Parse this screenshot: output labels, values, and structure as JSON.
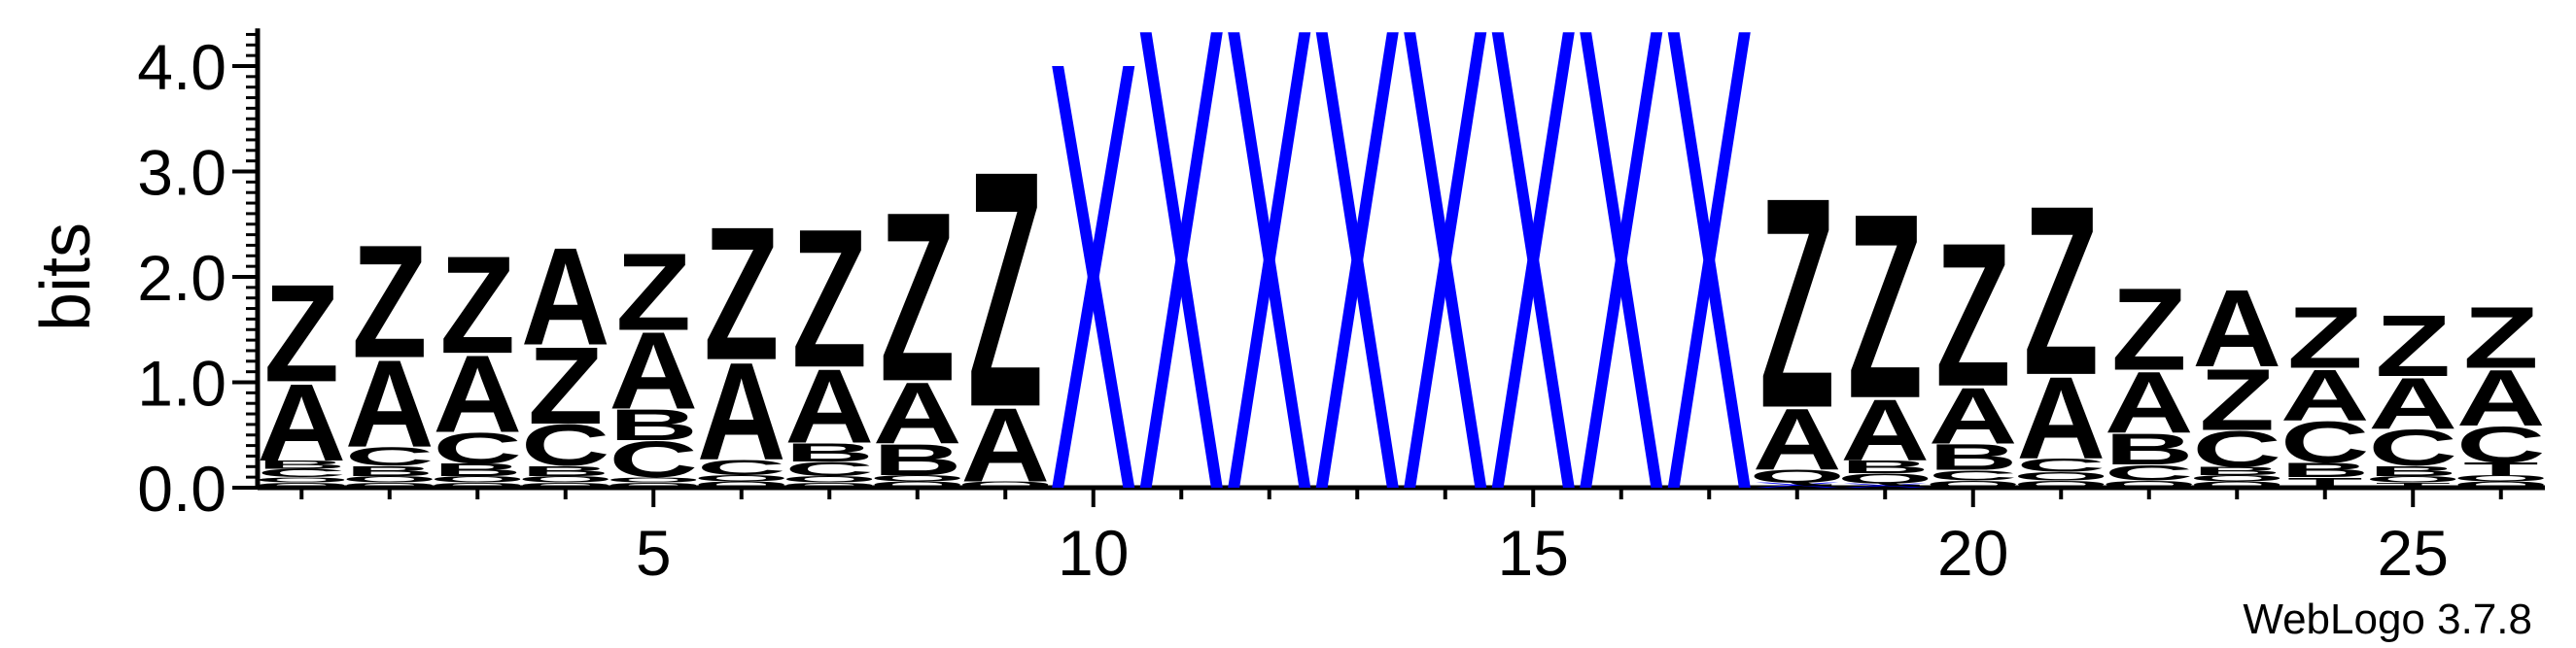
{
  "chart_data": {
    "type": "sequence-logo",
    "ylabel": "bits",
    "ylim": [
      0,
      4.32
    ],
    "yticks": [
      "0.0",
      "1.0",
      "2.0",
      "3.0",
      "4.0"
    ],
    "xticks": [
      "5",
      "10",
      "15",
      "20",
      "25"
    ],
    "positions": [
      1,
      2,
      3,
      4,
      5,
      6,
      7,
      8,
      9,
      10,
      11,
      12,
      13,
      14,
      15,
      16,
      17,
      18,
      19,
      20,
      21,
      22,
      23,
      24,
      25,
      26
    ],
    "colors": {
      "Z": "#ff0000",
      "A": "#ff0000",
      "Q": "#ff0000",
      "X": "#0000ff",
      "C": "#228b22",
      "B": "#ff8c00",
      "T": "#800080"
    },
    "stacks": [
      [
        [
          "Q",
          0.05
        ],
        [
          "O",
          0.05
        ],
        [
          "C",
          0.08
        ],
        [
          "B",
          0.08
        ],
        [
          "A",
          0.75
        ],
        [
          "Z",
          0.95
        ]
      ],
      [
        [
          "Q",
          0.05
        ],
        [
          "O",
          0.06
        ],
        [
          "B",
          0.1
        ],
        [
          "C",
          0.18
        ],
        [
          "A",
          0.85
        ],
        [
          "Z",
          1.1
        ]
      ],
      [
        [
          "Q",
          0.05
        ],
        [
          "O",
          0.06
        ],
        [
          "B",
          0.12
        ],
        [
          "C",
          0.3
        ],
        [
          "A",
          0.75
        ],
        [
          "Z",
          0.95
        ]
      ],
      [
        [
          "Q",
          0.05
        ],
        [
          "O",
          0.06
        ],
        [
          "B",
          0.1
        ],
        [
          "C",
          0.4
        ],
        [
          "Z",
          0.75
        ],
        [
          "A",
          0.95
        ]
      ],
      [
        [
          "Q",
          0.05
        ],
        [
          "O",
          0.05
        ],
        [
          "C",
          0.35
        ],
        [
          "B",
          0.3
        ],
        [
          "A",
          0.75
        ],
        [
          "Z",
          0.75
        ]
      ],
      [
        [
          "Q",
          0.06
        ],
        [
          "O",
          0.06
        ],
        [
          "C",
          0.15
        ],
        [
          "A",
          0.95
        ],
        [
          "Z",
          1.3
        ]
      ],
      [
        [
          "Q",
          0.05
        ],
        [
          "O",
          0.06
        ],
        [
          "C",
          0.14
        ],
        [
          "B",
          0.18
        ],
        [
          "A",
          0.72
        ],
        [
          "Z",
          1.35
        ]
      ],
      [
        [
          "Q",
          0.06
        ],
        [
          "O",
          0.06
        ],
        [
          "B",
          0.3
        ],
        [
          "A",
          0.6
        ],
        [
          "Z",
          1.65
        ]
      ],
      [
        [
          "Q",
          0.06
        ],
        [
          "A",
          0.72
        ],
        [
          "Z",
          2.3
        ]
      ],
      [
        [
          "X",
          4.0
        ]
      ],
      [
        [
          "X",
          4.32
        ]
      ],
      [
        [
          "X",
          4.32
        ]
      ],
      [
        [
          "X",
          4.32
        ]
      ],
      [
        [
          "X",
          4.32
        ]
      ],
      [
        [
          "X",
          4.32
        ]
      ],
      [
        [
          "X",
          4.32
        ]
      ],
      [
        [
          "X",
          4.32
        ]
      ],
      [
        [
          "X",
          0.05
        ],
        [
          "Q",
          0.12
        ],
        [
          "A",
          0.6
        ],
        [
          "Z",
          2.05
        ]
      ],
      [
        [
          "X",
          0.04
        ],
        [
          "Q",
          0.1
        ],
        [
          "B",
          0.12
        ],
        [
          "A",
          0.6
        ],
        [
          "Z",
          1.8
        ]
      ],
      [
        [
          "Q",
          0.07
        ],
        [
          "C",
          0.1
        ],
        [
          "B",
          0.25
        ],
        [
          "A",
          0.55
        ],
        [
          "Z",
          1.4
        ]
      ],
      [
        [
          "Q",
          0.07
        ],
        [
          "O",
          0.08
        ],
        [
          "C",
          0.13
        ],
        [
          "A",
          0.8
        ],
        [
          "Z",
          1.65
        ]
      ],
      [
        [
          "Q",
          0.07
        ],
        [
          "C",
          0.15
        ],
        [
          "B",
          0.3
        ],
        [
          "A",
          0.6
        ],
        [
          "Z",
          0.8
        ]
      ],
      [
        [
          "Q",
          0.06
        ],
        [
          "O",
          0.06
        ],
        [
          "B",
          0.08
        ],
        [
          "C",
          0.35
        ],
        [
          "Z",
          0.6
        ],
        [
          "A",
          0.75
        ]
      ],
      [
        [
          "T",
          0.1
        ],
        [
          "B",
          0.14
        ],
        [
          "C",
          0.4
        ],
        [
          "A",
          0.5
        ],
        [
          "Z",
          0.6
        ]
      ],
      [
        [
          "T",
          0.05
        ],
        [
          "O",
          0.06
        ],
        [
          "B",
          0.1
        ],
        [
          "C",
          0.35
        ],
        [
          "A",
          0.5
        ],
        [
          "Z",
          0.6
        ]
      ],
      [
        [
          "Q",
          0.06
        ],
        [
          "O",
          0.06
        ],
        [
          "T",
          0.12
        ],
        [
          "C",
          0.35
        ],
        [
          "A",
          0.55
        ],
        [
          "Z",
          0.6
        ]
      ]
    ]
  },
  "credit": "WebLogo 3.7.8"
}
